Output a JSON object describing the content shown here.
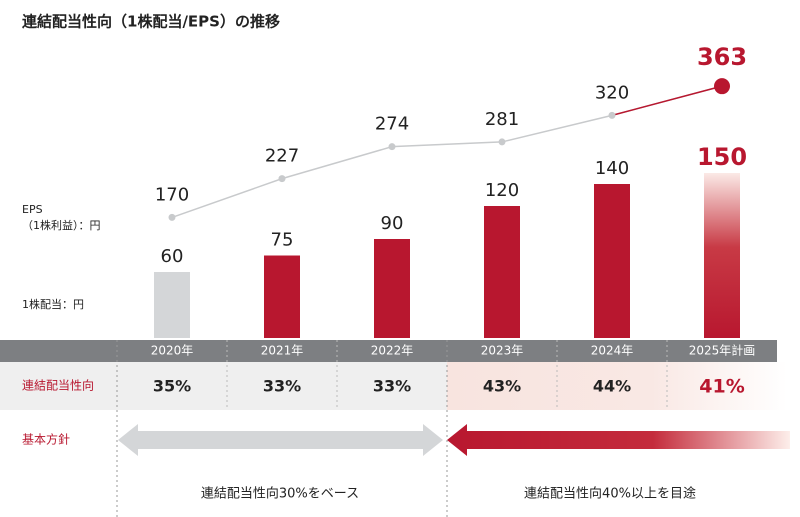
{
  "title": "連結配当性向（1株配当/EPS）の推移",
  "chart_data": {
    "type": "bar",
    "categories": [
      "2020年",
      "2021年",
      "2022年",
      "2023年",
      "2024年",
      "2025年計画"
    ],
    "series": [
      {
        "name": "1株配当：円",
        "type": "bar",
        "colors": [
          "#d4d6d8",
          "#b8172f",
          "#b8172f",
          "#b8172f",
          "#b8172f",
          "#b8172f"
        ],
        "values": [
          60,
          75,
          90,
          120,
          140,
          150
        ]
      },
      {
        "name": "EPS\n（1株利益）：円",
        "type": "line",
        "color": "#c8cacc",
        "values": [
          170,
          227,
          274,
          281,
          320,
          363
        ]
      }
    ]
  },
  "payout_table": {
    "label": "連結配当性向",
    "values": [
      "35%",
      "33%",
      "33%",
      "43%",
      "44%",
      "41%"
    ]
  },
  "policy": {
    "label": "基本方針",
    "items": [
      "連結配当性向30%をベース",
      "連結配当性向40%以上を目途"
    ]
  }
}
